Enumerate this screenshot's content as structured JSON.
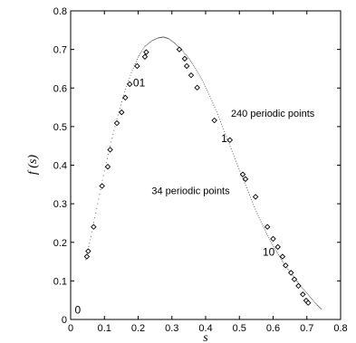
{
  "chart_data": {
    "type": "scatter",
    "title": "",
    "xlabel": "s",
    "ylabel": "f (s)",
    "xlim": [
      0,
      0.8
    ],
    "ylim": [
      0,
      0.8
    ],
    "xticks": [
      "0",
      "0.1",
      "0.2",
      "0.3",
      "0.4",
      "0.5",
      "0.6",
      "0.7",
      "0.8"
    ],
    "yticks": [
      "0",
      "0.1",
      "0.2",
      "0.3",
      "0.4",
      "0.5",
      "0.6",
      "0.7",
      "0.8"
    ],
    "grid": false,
    "series": [
      {
        "name": "34 periodic points",
        "marker": "diamond",
        "color": "#000000",
        "points": [
          [
            0.048,
            0.163
          ],
          [
            0.052,
            0.177
          ],
          [
            0.068,
            0.24
          ],
          [
            0.093,
            0.346
          ],
          [
            0.11,
            0.396
          ],
          [
            0.117,
            0.44
          ],
          [
            0.137,
            0.509
          ],
          [
            0.151,
            0.537
          ],
          [
            0.162,
            0.575
          ],
          [
            0.175,
            0.61
          ],
          [
            0.197,
            0.657
          ],
          [
            0.22,
            0.681
          ],
          [
            0.224,
            0.693
          ],
          [
            0.322,
            0.7
          ],
          [
            0.338,
            0.676
          ],
          [
            0.344,
            0.657
          ],
          [
            0.357,
            0.633
          ],
          [
            0.375,
            0.601
          ],
          [
            0.426,
            0.516
          ],
          [
            0.472,
            0.465
          ],
          [
            0.51,
            0.376
          ],
          [
            0.518,
            0.364
          ],
          [
            0.548,
            0.318
          ],
          [
            0.583,
            0.24
          ],
          [
            0.6,
            0.209
          ],
          [
            0.614,
            0.188
          ],
          [
            0.628,
            0.163
          ],
          [
            0.637,
            0.14
          ],
          [
            0.653,
            0.121
          ],
          [
            0.663,
            0.104
          ],
          [
            0.675,
            0.087
          ],
          [
            0.688,
            0.065
          ],
          [
            0.698,
            0.049
          ],
          [
            0.704,
            0.043
          ]
        ]
      },
      {
        "name": "240 periodic points",
        "marker": "dot",
        "color": "#555555",
        "curve": [
          [
            0.045,
            0.155
          ],
          [
            0.06,
            0.215
          ],
          [
            0.08,
            0.3
          ],
          [
            0.1,
            0.385
          ],
          [
            0.12,
            0.46
          ],
          [
            0.14,
            0.53
          ],
          [
            0.16,
            0.59
          ],
          [
            0.18,
            0.64
          ],
          [
            0.2,
            0.68
          ],
          [
            0.22,
            0.708
          ],
          [
            0.24,
            0.722
          ],
          [
            0.26,
            0.73
          ],
          [
            0.275,
            0.732
          ],
          [
            0.29,
            0.728
          ],
          [
            0.31,
            0.715
          ],
          [
            0.33,
            0.698
          ],
          [
            0.35,
            0.677
          ],
          [
            0.37,
            0.651
          ],
          [
            0.39,
            0.62
          ],
          [
            0.41,
            0.584
          ],
          [
            0.43,
            0.544
          ],
          [
            0.45,
            0.5
          ],
          [
            0.47,
            0.455
          ],
          [
            0.49,
            0.41
          ],
          [
            0.51,
            0.366
          ],
          [
            0.53,
            0.323
          ],
          [
            0.55,
            0.28
          ],
          [
            0.57,
            0.242
          ],
          [
            0.59,
            0.207
          ],
          [
            0.61,
            0.176
          ],
          [
            0.63,
            0.148
          ],
          [
            0.65,
            0.123
          ],
          [
            0.67,
            0.1
          ],
          [
            0.69,
            0.078
          ],
          [
            0.71,
            0.058
          ],
          [
            0.73,
            0.038
          ],
          [
            0.745,
            0.025
          ]
        ]
      }
    ],
    "annotations": [
      {
        "text": "01",
        "x": 0.185,
        "y": 0.604
      },
      {
        "text": "1",
        "x": 0.446,
        "y": 0.46
      },
      {
        "text": "10",
        "x": 0.569,
        "y": 0.165
      },
      {
        "text": "0",
        "x": 0.012,
        "y": 0.015
      },
      {
        "text": "240 periodic points",
        "x": 0.475,
        "y": 0.525
      },
      {
        "text": "34 periodic points",
        "x": 0.24,
        "y": 0.325
      }
    ]
  }
}
